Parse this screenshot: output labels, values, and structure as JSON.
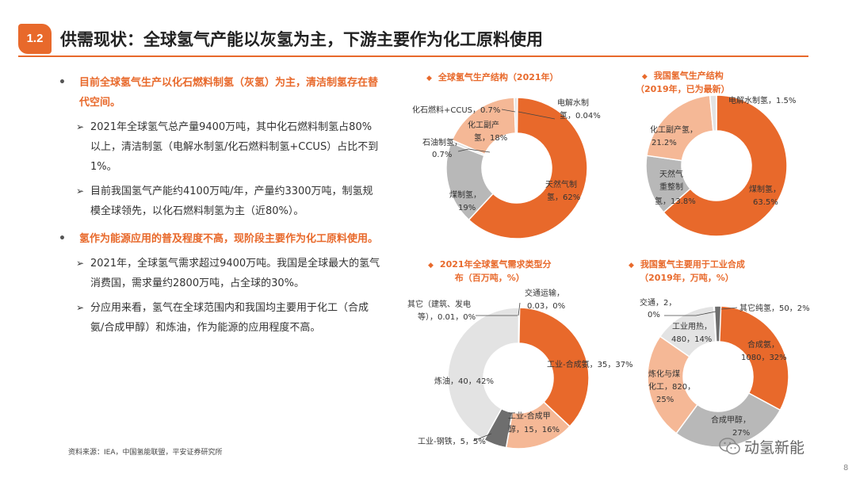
{
  "header": {
    "section_badge": "1.2",
    "title": "供需现状：全球氢气产能以灰氢为主，下游主要作为化工原料使用"
  },
  "bullets": [
    {
      "main": "目前全球氢气生产以化石燃料制氢（灰氢）为主，清洁制氢存在替代空间。",
      "subs": [
        "2021年全球氢气总产量9400万吨，其中化石燃料制氢占80%以上，清洁制氢（电解水制氢/化石燃料制氢+CCUS）占比不到1%。",
        "目前我国氢气产能约4100万吨/年，产量约3300万吨，制氢规模全球领先，以化石燃料制氢为主（近80%）。"
      ]
    },
    {
      "main": "氢作为能源应用的普及程度不高，现阶段主要作为化工原料使用。",
      "subs": [
        "2021年，全球氢气需求超过9400万吨。我国是全球最大的氢气消费国，需求量约2800万吨，占全球的30%。",
        "分应用来看，氢气在全球范围内和我国均主要用于化工（合成氨/合成甲醇）和炼油，作为能源的应用程度不高。"
      ]
    }
  ],
  "source_note": "资料来源：IEA，中国氢能联盟，平安证券研究所",
  "page_number": "8",
  "watermark": "动氢新能",
  "colors": {
    "orange": "#e8692b",
    "light_orange": "#f5b896",
    "gray": "#b8b8b8",
    "light_gray": "#e3e3e3",
    "dark_gray": "#6e6e6e"
  },
  "charts": [
    {
      "title_line1": "全球氢气生产结构（2021年）",
      "title_line2": "",
      "segments": [
        {
          "label": "电解水制氢",
          "value": 0.04,
          "pct": "0.04%"
        },
        {
          "label": "天然气制氢",
          "value": 62,
          "pct": "62%"
        },
        {
          "label": "煤制氢",
          "value": 19,
          "pct": "19%"
        },
        {
          "label": "石油制氢",
          "value": 0.7,
          "pct": "0.7%"
        },
        {
          "label": "化工副产氢",
          "value": 18,
          "pct": "18%"
        },
        {
          "label": "化石燃料+CCUS",
          "value": 0.7,
          "pct": "0.7%"
        }
      ]
    },
    {
      "title_line1": "我国氢气生产结构",
      "title_line2": "（2019年，已为最新）",
      "segments": [
        {
          "label": "煤制氢",
          "value": 63.5,
          "pct": "63.5%"
        },
        {
          "label": "天然气重整制氢",
          "value": 13.8,
          "pct": "13.8%"
        },
        {
          "label": "化工副产氢",
          "value": 21.2,
          "pct": "21.2%"
        },
        {
          "label": "电解水制氢",
          "value": 1.5,
          "pct": "1.5%"
        }
      ]
    },
    {
      "title_line1": "2021年全球氢气需求类型分",
      "title_line2": "布（百万吨，%）",
      "segments": [
        {
          "label": "交通运输",
          "value": 0.03,
          "pct": "0%"
        },
        {
          "label": "工业-合成氨",
          "value": 35,
          "pct": "37%"
        },
        {
          "label": "工业-合成甲醇",
          "value": 15,
          "pct": "16%"
        },
        {
          "label": "工业-钢铁",
          "value": 5,
          "pct": "5%"
        },
        {
          "label": "炼油",
          "value": 40,
          "pct": "42%"
        },
        {
          "label": "其它（建筑、发电等）",
          "value": 0.01,
          "pct": "0%"
        }
      ]
    },
    {
      "title_line1": "我国氢气主要用于工业合成",
      "title_line2": "（2019年，万吨，%）",
      "segments": [
        {
          "label": "合成氨",
          "value": 1080,
          "pct": "32%"
        },
        {
          "label": "合成甲醇",
          "value": 910,
          "pct": "27%"
        },
        {
          "label": "炼化与煤化工",
          "value": 820,
          "pct": "25%"
        },
        {
          "label": "工业用热",
          "value": 480,
          "pct": "14%"
        },
        {
          "label": "交通",
          "value": 2,
          "pct": "0%"
        },
        {
          "label": "其它纯氢",
          "value": 50,
          "pct": "2%"
        }
      ]
    }
  ],
  "chart_labels": {
    "c1": {
      "elec_a": "电解水制",
      "elec_b": "氢，0.04%",
      "ccus": "化石燃料+CCUS，0.7%",
      "byprod_a": "化工副产",
      "byprod_b": "氢，18%",
      "oil_a": "石油制氢，",
      "oil_b": "0.7%",
      "coal_a": "煤制氢，",
      "coal_b": "19%",
      "ng_a": "天然气制",
      "ng_b": "氢，62%"
    },
    "c2": {
      "elec": "电解水制氢，1.5%",
      "byprod_a": "化工副产氢，",
      "byprod_b": "21.2%",
      "ng_a": "天然气",
      "ng_b": "重整制",
      "ng_c": "氢，13.8%",
      "coal_a": "煤制氢，",
      "coal_b": "63.5%"
    },
    "c3": {
      "trans_a": "交通运输，",
      "trans_b": "0.03，0%",
      "other_a": "其它（建筑、发电",
      "other_b": "等），0.01，0%",
      "nh3": "工业-合成氨，35，37%",
      "meoh_a": "工业-合成甲",
      "meoh_b": "醇，15，16%",
      "steel": "工业-钢铁，5，5%",
      "refine": "炼油，40，42%"
    },
    "c4": {
      "trans_a": "交通，2，",
      "trans_b": "0%",
      "other": "其它纯氢，50，2%",
      "heat_a": "工业用热，",
      "heat_b": "480，14%",
      "nh3_a": "合成氨，",
      "nh3_b": "1080，32%",
      "refine_a": "炼化与煤",
      "refine_b": "化工，820，",
      "refine_c": "25%",
      "meoh_a": "合成甲醇，",
      "meoh_b": "27%"
    }
  }
}
